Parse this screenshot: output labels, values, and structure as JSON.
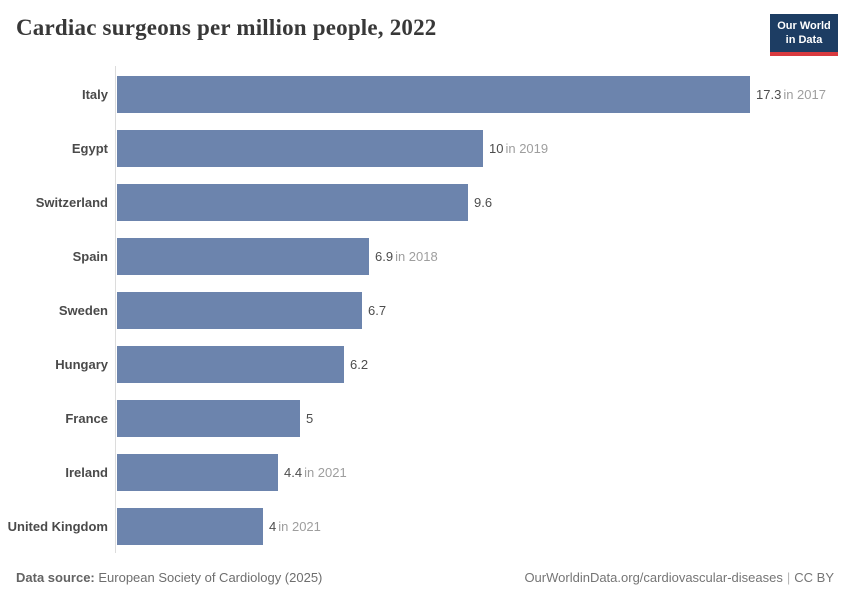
{
  "header": {
    "title": "Cardiac surgeons per million people, 2022",
    "logo": {
      "line1": "Our World",
      "line2": "in Data"
    }
  },
  "chart_data": {
    "type": "bar",
    "orientation": "horizontal",
    "title": "Cardiac surgeons per million people, 2022",
    "categories": [
      "Italy",
      "Egypt",
      "Switzerland",
      "Spain",
      "Sweden",
      "Hungary",
      "France",
      "Ireland",
      "United Kingdom"
    ],
    "values": [
      17.3,
      10,
      9.6,
      6.9,
      6.7,
      6.2,
      5,
      4.4,
      4
    ],
    "xlim": [
      0,
      17.3
    ],
    "grid": false,
    "legend": false,
    "bar_color": "#6c84ad",
    "series": [
      {
        "entity": "Italy",
        "value": 17.3,
        "display": "17.3",
        "note": "in 2017"
      },
      {
        "entity": "Egypt",
        "value": 10,
        "display": "10",
        "note": "in 2019"
      },
      {
        "entity": "Switzerland",
        "value": 9.6,
        "display": "9.6",
        "note": ""
      },
      {
        "entity": "Spain",
        "value": 6.9,
        "display": "6.9",
        "note": "in 2018"
      },
      {
        "entity": "Sweden",
        "value": 6.7,
        "display": "6.7",
        "note": ""
      },
      {
        "entity": "Hungary",
        "value": 6.2,
        "display": "6.2",
        "note": ""
      },
      {
        "entity": "France",
        "value": 5,
        "display": "5",
        "note": ""
      },
      {
        "entity": "Ireland",
        "value": 4.4,
        "display": "4.4",
        "note": "in 2021"
      },
      {
        "entity": "United Kingdom",
        "value": 4,
        "display": "4",
        "note": "in 2021"
      }
    ]
  },
  "footer": {
    "source_label": "Data source:",
    "source_text": " European Society of Cardiology (2025)",
    "url": "OurWorldinData.org/cardiovascular-diseases",
    "divider": "|",
    "license": "CC BY"
  },
  "colors": {
    "bar": "#6c84ad",
    "axis_line": "#dcdcdc",
    "title_text": "#383838",
    "entity_text": "#4a4a4a",
    "value_text": "#4d4d4d",
    "note_text": "#9e9e9e",
    "logo_navy": "#1d3d63",
    "logo_red": "#d93a3f"
  }
}
